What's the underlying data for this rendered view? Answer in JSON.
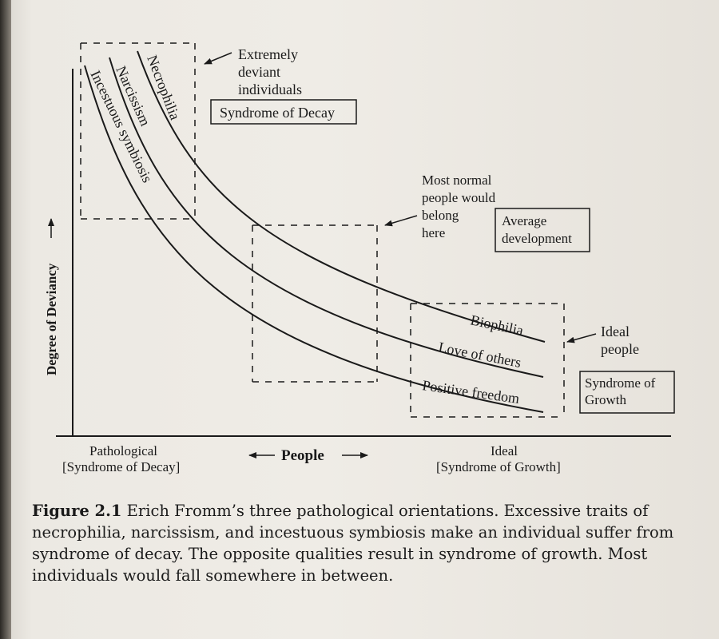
{
  "diagram": {
    "y_axis_label": "Degree of Deviancy",
    "x_axis_left_line1": "Pathological",
    "x_axis_left_line2": "[Syndrome of Decay]",
    "x_axis_center": "People",
    "x_axis_right_line1": "Ideal",
    "x_axis_right_line2": "[Syndrome of Growth]",
    "curves": {
      "necrophilia": "Necrophilia",
      "narcissism": "Narcissism",
      "incestuous": "Incestuous symbiosis",
      "biophilia": "Biophilia",
      "love": "Love of others",
      "freedom": "Positive freedom"
    },
    "annotations": {
      "deviant": [
        "Extremely",
        "deviant",
        "individuals"
      ],
      "decay_box": "Syndrome of Decay",
      "normal": [
        "Most normal",
        "people would",
        "belong",
        "here"
      ],
      "average_box": [
        "Average",
        "development"
      ],
      "ideal": [
        "Ideal",
        "people"
      ],
      "growth_box": [
        "Syndrome of",
        "Growth"
      ]
    }
  },
  "caption": {
    "label": "Figure 2.1",
    "text": "Erich Fromm’s three pathological orientations. Excessive traits of necrophilia, narcissism, and incestuous symbiosis make an individual suffer from syndrome of decay. The opposite qualities result in syndrome of growth. Most individuals would fall somewhere in between."
  }
}
